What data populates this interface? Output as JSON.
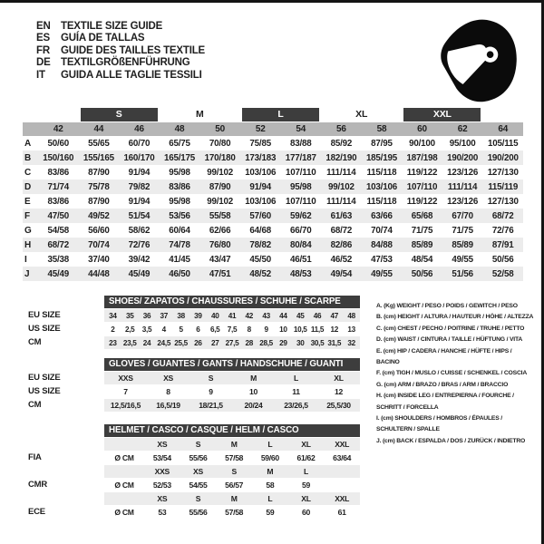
{
  "header": {
    "languages": [
      {
        "code": "EN",
        "title": "TEXTILE SIZE GUIDE"
      },
      {
        "code": "ES",
        "title": "GUÍA DE TALLAS"
      },
      {
        "code": "FR",
        "title": "GUIDE DES TAILLES TEXTILE"
      },
      {
        "code": "DE",
        "title": "TEXTILGRÖßENFÜHRUNG"
      },
      {
        "code": "IT",
        "title": "GUIDA ALLE TAGLIE TESSILI"
      }
    ],
    "icon": "racing-helmet"
  },
  "clothing_table": {
    "size_groups": [
      {
        "label": "S",
        "dark": true
      },
      {
        "label": "M",
        "dark": false
      },
      {
        "label": "L",
        "dark": true
      },
      {
        "label": "XL",
        "dark": false
      },
      {
        "label": "XXL",
        "dark": true
      }
    ],
    "columns": [
      "42",
      "44",
      "46",
      "48",
      "50",
      "52",
      "54",
      "56",
      "58",
      "60",
      "62",
      "64"
    ],
    "rows": [
      {
        "key": "A",
        "values": [
          "50/60",
          "55/65",
          "60/70",
          "65/75",
          "70/80",
          "75/85",
          "83/88",
          "85/92",
          "87/95",
          "90/100",
          "95/100",
          "105/115"
        ]
      },
      {
        "key": "B",
        "values": [
          "150/160",
          "155/165",
          "160/170",
          "165/175",
          "170/180",
          "173/183",
          "177/187",
          "182/190",
          "185/195",
          "187/198",
          "190/200",
          "190/200"
        ]
      },
      {
        "key": "C",
        "values": [
          "83/86",
          "87/90",
          "91/94",
          "95/98",
          "99/102",
          "103/106",
          "107/110",
          "111/114",
          "115/118",
          "119/122",
          "123/126",
          "127/130"
        ]
      },
      {
        "key": "D",
        "values": [
          "71/74",
          "75/78",
          "79/82",
          "83/86",
          "87/90",
          "91/94",
          "95/98",
          "99/102",
          "103/106",
          "107/110",
          "111/114",
          "115/119"
        ]
      },
      {
        "key": "E",
        "values": [
          "83/86",
          "87/90",
          "91/94",
          "95/98",
          "99/102",
          "103/106",
          "107/110",
          "111/114",
          "115/118",
          "119/122",
          "123/126",
          "127/130"
        ]
      },
      {
        "key": "F",
        "values": [
          "47/50",
          "49/52",
          "51/54",
          "53/56",
          "55/58",
          "57/60",
          "59/62",
          "61/63",
          "63/66",
          "65/68",
          "67/70",
          "68/72"
        ]
      },
      {
        "key": "G",
        "values": [
          "54/58",
          "56/60",
          "58/62",
          "60/64",
          "62/66",
          "64/68",
          "66/70",
          "68/72",
          "70/74",
          "71/75",
          "71/75",
          "72/76"
        ]
      },
      {
        "key": "H",
        "values": [
          "68/72",
          "70/74",
          "72/76",
          "74/78",
          "76/80",
          "78/82",
          "80/84",
          "82/86",
          "84/88",
          "85/89",
          "85/89",
          "87/91"
        ]
      },
      {
        "key": "I",
        "values": [
          "35/38",
          "37/40",
          "39/42",
          "41/45",
          "43/47",
          "45/50",
          "46/51",
          "46/52",
          "47/53",
          "48/54",
          "49/55",
          "50/56"
        ]
      },
      {
        "key": "J",
        "values": [
          "45/49",
          "44/48",
          "45/49",
          "46/50",
          "47/51",
          "48/52",
          "48/53",
          "49/54",
          "49/55",
          "50/56",
          "51/56",
          "52/58"
        ]
      }
    ]
  },
  "shoes_table": {
    "title": "SHOES/ ZAPATOS / CHAUSSURES / SCHUHE / SCARPE",
    "rows": [
      {
        "label": "EU SIZE",
        "values": [
          "34",
          "35",
          "36",
          "37",
          "38",
          "39",
          "40",
          "41",
          "42",
          "43",
          "44",
          "45",
          "46",
          "47",
          "48"
        ]
      },
      {
        "label": "US SIZE",
        "values": [
          "2",
          "2,5",
          "3,5",
          "4",
          "5",
          "6",
          "6,5",
          "7,5",
          "8",
          "9",
          "10",
          "10,5",
          "11,5",
          "12",
          "13"
        ]
      },
      {
        "label": "CM",
        "values": [
          "23",
          "23,5",
          "24",
          "24,5",
          "25,5",
          "26",
          "27",
          "27,5",
          "28",
          "28,5",
          "29",
          "30",
          "30,5",
          "31,5",
          "32"
        ]
      }
    ]
  },
  "gloves_table": {
    "title": "GLOVES / GUANTES / GANTS / HANDSCHUHE / GUANTI",
    "rows": [
      {
        "label": "EU SIZE",
        "values": [
          "XXS",
          "XS",
          "S",
          "M",
          "L",
          "XL"
        ]
      },
      {
        "label": "US SIZE",
        "values": [
          "7",
          "8",
          "9",
          "10",
          "11",
          "12"
        ]
      },
      {
        "label": "CM",
        "values": [
          "12,5/16,5",
          "16,5/19",
          "18/21,5",
          "20/24",
          "23/26,5",
          "25,5/30"
        ]
      }
    ]
  },
  "helmet_table": {
    "title": "HELMET / CASCO / CASQUE / HELM / CASCO",
    "groups": [
      {
        "label": "FIA",
        "unit": "Ø CM",
        "sizes": [
          "XS",
          "S",
          "M",
          "L",
          "XL",
          "XXL"
        ],
        "values": [
          "53/54",
          "55/56",
          "57/58",
          "59/60",
          "61/62",
          "63/64"
        ]
      },
      {
        "label": "CMR",
        "unit": "Ø CM",
        "sizes": [
          "XXS",
          "XS",
          "S",
          "M",
          "L",
          ""
        ],
        "values": [
          "52/53",
          "54/55",
          "56/57",
          "58",
          "59",
          ""
        ]
      },
      {
        "label": "ECE",
        "unit": "Ø CM",
        "sizes": [
          "XS",
          "S",
          "M",
          "L",
          "XL",
          "XXL"
        ],
        "values": [
          "53",
          "55/56",
          "57/58",
          "59",
          "60",
          "61"
        ]
      }
    ]
  },
  "legend": {
    "items": [
      "A. (Kg) WEIGHT / PESO / POIDS / GEWITCH / PESO",
      "B. (cm) HEIGHT / ALTURA / HAUTEUR / HÖHE / ALTEZZA",
      "C. (cm) CHEST / PECHO / POITRINE / TRUHE / PETTO",
      "D. (cm) WAIST / CINTURA / TAILLE / HÜFTUNG / VITA",
      "E. (cm) HIP / CADERA / HANCHE / HÜFTE / HIPS / BACINO",
      "F. (cm) TIGH / MUSLO / CUISSE / SCHENKEL / COSCIA",
      "G. (cm) ARM / BRAZO / BRAS / ARM / BRACCIO",
      "H. (cm) INSIDE LEG / ENTREPIERNA / FOURCHE / SCHRITT / FORCELLA",
      "I. (cm) SHOULDERS / HOMBROS / ÉPAULES / SCHULTERN / SPALLE",
      "J. (cm) BACK / ESPALDA / DOS / ZURÜCK / INDIETRO"
    ]
  },
  "colors": {
    "dark_bar": "#3d3d3d",
    "number_row_gray": "#b6b6b6",
    "stripe_gray": "#ececec",
    "text": "#1f1f1f"
  }
}
